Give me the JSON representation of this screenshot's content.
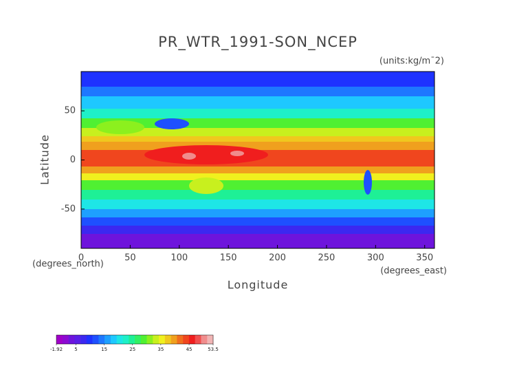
{
  "chart_data": {
    "type": "map",
    "title": "PR_WTR_1991-SON_NCEP",
    "units": "(units:kg/m¯2)",
    "y_label": "Latitude",
    "x_label": "Longitude",
    "y_unit_label": "(degrees_north)",
    "x_unit_label": "(degrees_east)",
    "xlim": [
      0,
      360
    ],
    "xticks": [
      0,
      50,
      100,
      150,
      200,
      250,
      300,
      350
    ],
    "ylim": [
      -90,
      90
    ],
    "yticks": [
      -50,
      0,
      50
    ],
    "colorbar": {
      "range": [
        -1.92,
        53.5
      ],
      "ticks": [
        -1.92,
        5,
        15,
        25,
        35,
        45,
        53.5
      ],
      "colors": [
        "#a000c8",
        "#8c0ad2",
        "#6e14dc",
        "#5a1ee6",
        "#3c28f0",
        "#1e32ff",
        "#1e50ff",
        "#1e78ff",
        "#1ea0ff",
        "#1ec8ff",
        "#1ee6e6",
        "#1ef0c8",
        "#1ef096",
        "#32f064",
        "#50f032",
        "#8cf01e",
        "#c8f01e",
        "#f0f01e",
        "#f0c81e",
        "#f0a01e",
        "#f06e1e",
        "#f0461e",
        "#f01e1e",
        "#f05050",
        "#f08c8c",
        "#f0b4b4"
      ]
    }
  }
}
